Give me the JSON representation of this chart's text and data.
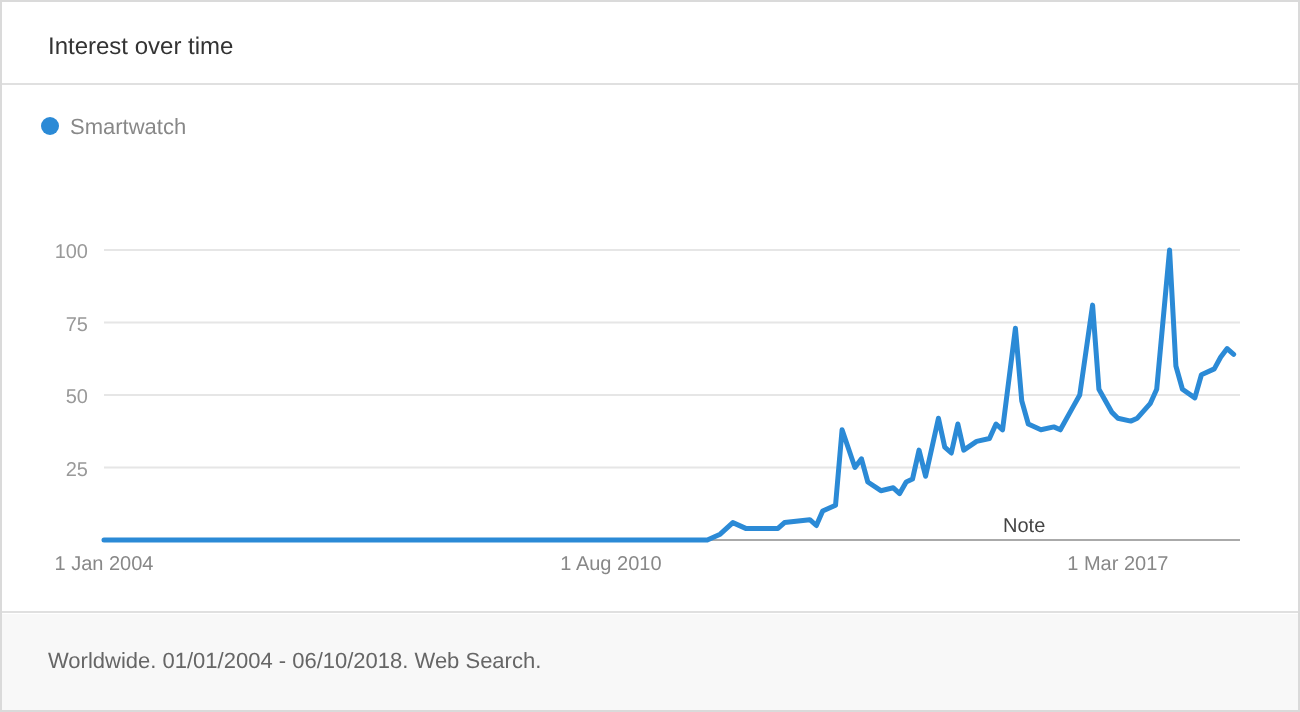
{
  "chart_data": {
    "type": "line",
    "title": "Interest over time",
    "x": [
      "2004-01",
      "2011-11",
      "2012-01",
      "2012-03",
      "2012-05",
      "2012-10",
      "2012-11",
      "2013-03",
      "2013-04",
      "2013-05",
      "2013-07",
      "2013-08",
      "2013-10",
      "2013-11",
      "2013-12",
      "2014-02",
      "2014-04",
      "2014-05",
      "2014-06",
      "2014-07",
      "2014-08",
      "2014-09",
      "2014-11",
      "2014-12",
      "2015-01",
      "2015-02",
      "2015-03",
      "2015-05",
      "2015-07",
      "2015-08",
      "2015-09",
      "2015-11",
      "2015-12",
      "2016-01",
      "2016-03",
      "2016-05",
      "2016-06",
      "2016-08",
      "2016-09",
      "2016-11",
      "2016-12",
      "2017-02",
      "2017-03",
      "2017-05",
      "2017-06",
      "2017-08",
      "2017-09",
      "2017-11",
      "2017-12",
      "2018-01",
      "2018-03",
      "2018-04",
      "2018-06",
      "2018-07",
      "2018-08",
      "2018-09"
    ],
    "series": [
      {
        "name": "Smartwatch",
        "color": "#2b8ad6",
        "values": [
          0,
          0,
          2,
          6,
          4,
          4,
          6,
          7,
          5,
          10,
          12,
          38,
          25,
          28,
          20,
          17,
          18,
          16,
          20,
          21,
          31,
          22,
          42,
          32,
          30,
          40,
          31,
          34,
          35,
          40,
          38,
          73,
          48,
          40,
          38,
          39,
          38,
          46,
          50,
          81,
          52,
          44,
          42,
          41,
          42,
          47,
          52,
          100,
          60,
          52,
          49,
          57,
          59,
          63,
          66,
          64
        ]
      }
    ],
    "xlim": [
      "2004-01",
      "2018-10"
    ],
    "xticks": [
      {
        "value": "2004-01-01",
        "label": "1 Jan 2004"
      },
      {
        "value": "2010-08-01",
        "label": "1 Aug 2010"
      },
      {
        "value": "2017-03-01",
        "label": "1 Mar 2017"
      }
    ],
    "ylim": [
      0,
      100
    ],
    "yticks": [
      25,
      50,
      75,
      100
    ],
    "grid": "y",
    "legend": "top left",
    "marker": "none",
    "line_style": "solid",
    "annotations": [
      "Note",
      "Worldwide. 01/01/2004 - 06/10/2018. Web Search."
    ]
  }
}
